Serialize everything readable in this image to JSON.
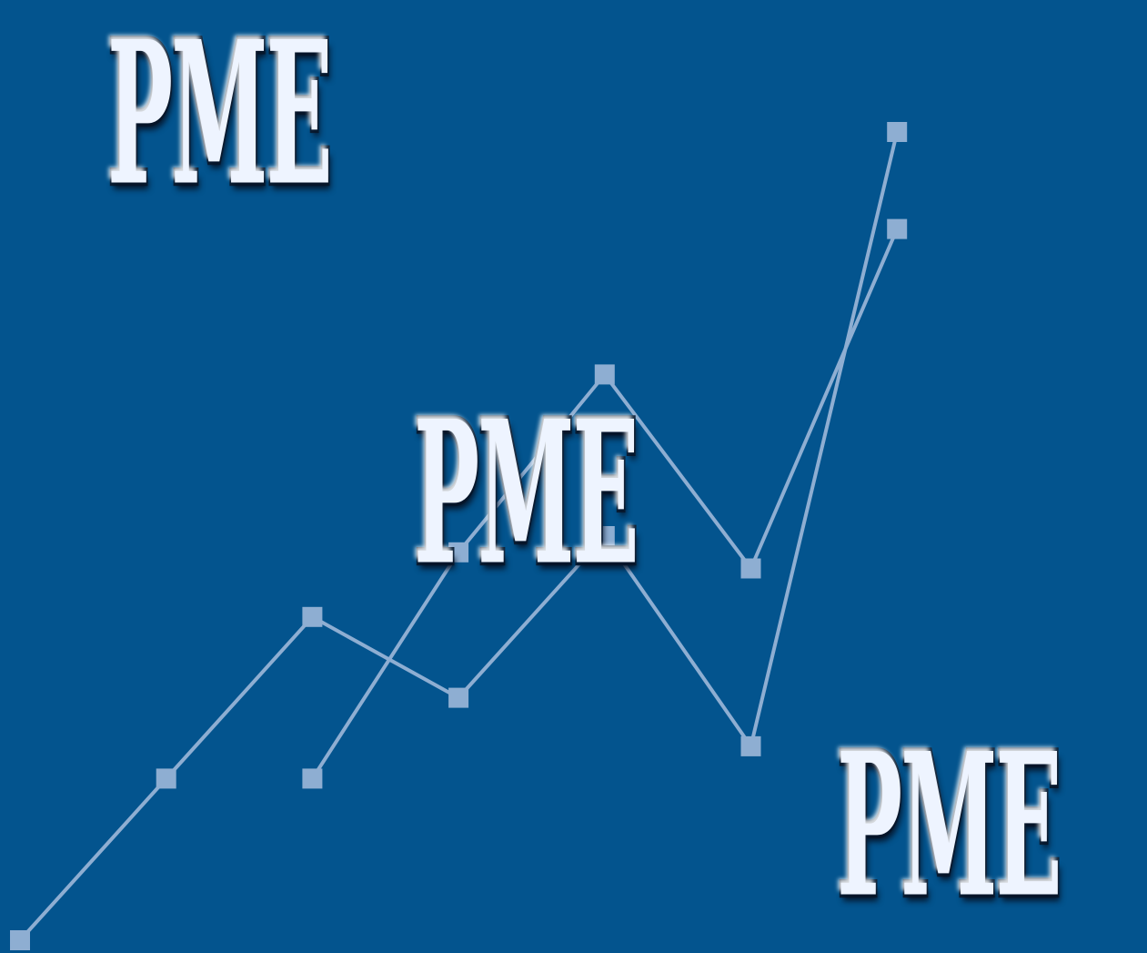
{
  "colors": {
    "background": "#03548e",
    "line": "#8eaed2",
    "marker": "#8eaed2",
    "wordmark_fill": "#eef4ff",
    "wordmark_outline": "#0a1f36"
  },
  "wordmarks": {
    "top": "PME",
    "middle": "PME",
    "bottom": "PME"
  },
  "chart_data": {
    "type": "line",
    "title": "",
    "xlabel": "",
    "ylabel": "",
    "grid": false,
    "legend": "none",
    "x": [
      0,
      1,
      2,
      3,
      4,
      5,
      6
    ],
    "series": [
      {
        "values": [
          0,
          1,
          2,
          1.5,
          2.5,
          1.2,
          5
        ]
      },
      {
        "values": [
          null,
          null,
          1,
          2.4,
          3.5,
          2.3,
          4.4
        ]
      }
    ]
  }
}
